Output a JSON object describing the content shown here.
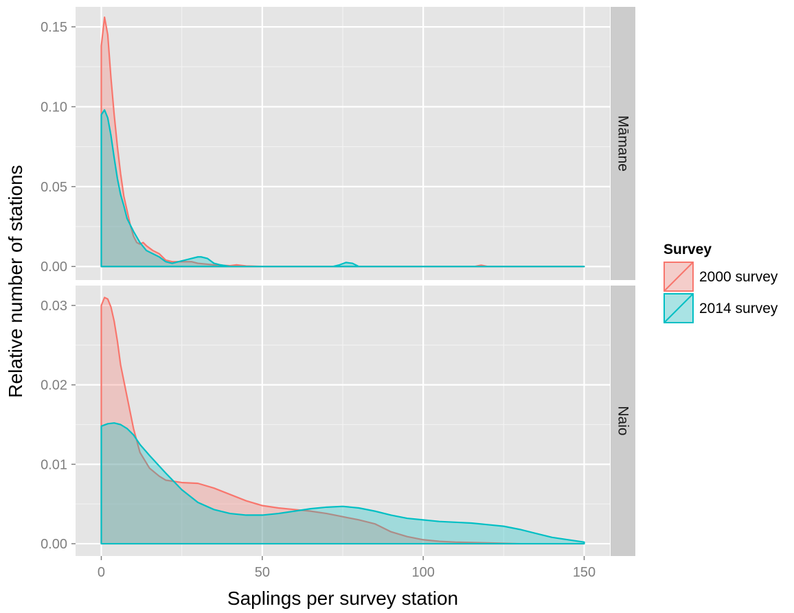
{
  "chart_data": {
    "type": "area",
    "xlabel": "Saplings per survey station",
    "ylabel": "Relative number of stations",
    "xlim": [
      -8,
      158
    ],
    "xticks": [
      0,
      50,
      100,
      150
    ],
    "xtick_labels": [
      "0",
      "50",
      "100",
      "150"
    ],
    "grid": true,
    "legend": {
      "title": "Survey",
      "placement": "right",
      "entries": [
        {
          "label": "2000 survey",
          "color": "#F8766D"
        },
        {
          "label": "2014 survey",
          "color": "#00BFC4"
        }
      ]
    },
    "panels": [
      {
        "strip_label": "Māmane",
        "ylim": [
          -0.0085,
          0.1625
        ],
        "yticks": [
          0,
          0.05,
          0.1,
          0.15
        ],
        "ytick_labels": [
          "0.00",
          "0.05",
          "0.10",
          "0.15"
        ],
        "series": [
          {
            "name": "2000 survey",
            "color": "#F8766D",
            "points": [
              [
                0,
                0.138
              ],
              [
                1,
                0.156
              ],
              [
                2,
                0.145
              ],
              [
                3,
                0.118
              ],
              [
                4,
                0.095
              ],
              [
                5,
                0.075
              ],
              [
                6,
                0.058
              ],
              [
                7,
                0.044
              ],
              [
                8,
                0.035
              ],
              [
                9,
                0.026
              ],
              [
                10,
                0.019
              ],
              [
                11,
                0.015
              ],
              [
                12,
                0.014
              ],
              [
                13,
                0.015
              ],
              [
                14,
                0.013
              ],
              [
                16,
                0.01
              ],
              [
                18,
                0.008
              ],
              [
                20,
                0.004
              ],
              [
                22,
                0.003
              ],
              [
                25,
                0.003
              ],
              [
                28,
                0.003
              ],
              [
                30,
                0.002
              ],
              [
                35,
                0.001
              ],
              [
                40,
                0.0005
              ],
              [
                42,
                0.001
              ],
              [
                45,
                0.0003
              ],
              [
                50,
                0
              ],
              [
                110,
                0
              ],
              [
                116,
                0
              ],
              [
                118,
                0.0008
              ],
              [
                120,
                0
              ],
              [
                150,
                0
              ]
            ]
          },
          {
            "name": "2014 survey",
            "color": "#00BFC4",
            "points": [
              [
                0,
                0.095
              ],
              [
                1,
                0.098
              ],
              [
                2,
                0.093
              ],
              [
                3,
                0.082
              ],
              [
                4,
                0.068
              ],
              [
                5,
                0.055
              ],
              [
                6,
                0.045
              ],
              [
                7,
                0.038
              ],
              [
                8,
                0.03
              ],
              [
                10,
                0.022
              ],
              [
                12,
                0.015
              ],
              [
                14,
                0.01
              ],
              [
                16,
                0.008
              ],
              [
                18,
                0.006
              ],
              [
                20,
                0.003
              ],
              [
                22,
                0.002
              ],
              [
                24,
                0.003
              ],
              [
                26,
                0.004
              ],
              [
                28,
                0.005
              ],
              [
                30,
                0.006
              ],
              [
                31,
                0.006
              ],
              [
                33,
                0.005
              ],
              [
                35,
                0.002
              ],
              [
                37,
                0.001
              ],
              [
                40,
                0
              ],
              [
                72,
                0
              ],
              [
                74,
                0.001
              ],
              [
                76,
                0.0025
              ],
              [
                78,
                0.002
              ],
              [
                80,
                0
              ],
              [
                150,
                0
              ]
            ]
          }
        ]
      },
      {
        "strip_label": "Naio",
        "ylim": [
          -0.00155,
          0.0325
        ],
        "yticks": [
          0,
          0.01,
          0.02,
          0.03
        ],
        "ytick_labels": [
          "0.00",
          "0.01",
          "0.02",
          "0.03"
        ],
        "series": [
          {
            "name": "2000 survey",
            "color": "#F8766D",
            "points": [
              [
                0,
                0.03
              ],
              [
                1,
                0.031
              ],
              [
                2,
                0.0308
              ],
              [
                3,
                0.0298
              ],
              [
                4,
                0.028
              ],
              [
                5,
                0.0255
              ],
              [
                6,
                0.0225
              ],
              [
                8,
                0.0185
              ],
              [
                10,
                0.0145
              ],
              [
                12,
                0.0115
              ],
              [
                15,
                0.0095
              ],
              [
                18,
                0.0085
              ],
              [
                20,
                0.008
              ],
              [
                25,
                0.0077
              ],
              [
                30,
                0.0076
              ],
              [
                35,
                0.007
              ],
              [
                40,
                0.0062
              ],
              [
                45,
                0.0054
              ],
              [
                50,
                0.0048
              ],
              [
                55,
                0.0045
              ],
              [
                60,
                0.0043
              ],
              [
                65,
                0.0041
              ],
              [
                70,
                0.0038
              ],
              [
                75,
                0.0034
              ],
              [
                80,
                0.003
              ],
              [
                85,
                0.0025
              ],
              [
                90,
                0.0015
              ],
              [
                95,
                0.0009
              ],
              [
                100,
                0.0005
              ],
              [
                105,
                0.0003
              ],
              [
                110,
                0.0002
              ],
              [
                120,
                0.0001
              ],
              [
                130,
                0
              ],
              [
                150,
                0
              ]
            ]
          },
          {
            "name": "2014 survey",
            "color": "#00BFC4",
            "points": [
              [
                0,
                0.0148
              ],
              [
                2,
                0.0151
              ],
              [
                4,
                0.0152
              ],
              [
                6,
                0.015
              ],
              [
                8,
                0.0145
              ],
              [
                10,
                0.0137
              ],
              [
                12,
                0.0125
              ],
              [
                15,
                0.0111
              ],
              [
                20,
                0.0089
              ],
              [
                25,
                0.0068
              ],
              [
                30,
                0.0052
              ],
              [
                35,
                0.0043
              ],
              [
                40,
                0.0038
              ],
              [
                45,
                0.0036
              ],
              [
                50,
                0.0036
              ],
              [
                55,
                0.0038
              ],
              [
                60,
                0.0041
              ],
              [
                65,
                0.0044
              ],
              [
                70,
                0.0046
              ],
              [
                75,
                0.0047
              ],
              [
                80,
                0.0045
              ],
              [
                85,
                0.0041
              ],
              [
                90,
                0.0036
              ],
              [
                95,
                0.0032
              ],
              [
                100,
                0.003
              ],
              [
                105,
                0.0028
              ],
              [
                110,
                0.0027
              ],
              [
                115,
                0.0026
              ],
              [
                120,
                0.0024
              ],
              [
                125,
                0.0022
              ],
              [
                130,
                0.0018
              ],
              [
                135,
                0.0013
              ],
              [
                140,
                0.0008
              ],
              [
                145,
                0.0005
              ],
              [
                150,
                0.0002
              ]
            ]
          }
        ]
      }
    ]
  }
}
